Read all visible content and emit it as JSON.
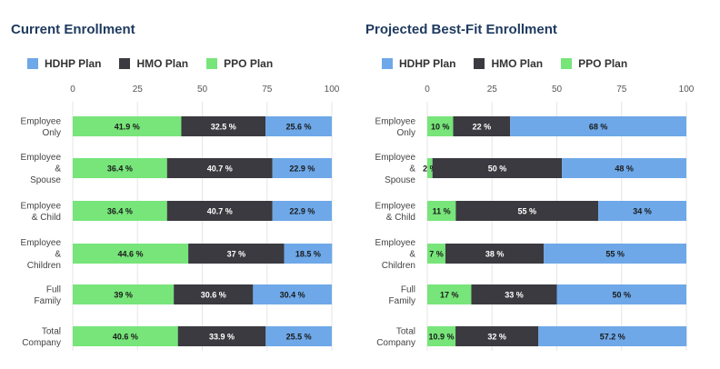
{
  "chart_data": [
    {
      "type": "bar",
      "orientation": "horizontal",
      "stacked": true,
      "title": "Current Enrollment",
      "legend_position": "top-left",
      "xlim": [
        0,
        100
      ],
      "ticks": [
        "0",
        "25",
        "50",
        "75",
        "100"
      ],
      "categories": [
        [
          "Employee",
          "Only"
        ],
        [
          "Employee",
          "&",
          "Spouse"
        ],
        [
          "Employee",
          "& Child"
        ],
        [
          "Employee",
          "&",
          "Children"
        ],
        [
          "Full",
          "Family"
        ],
        [
          "Total",
          "Company"
        ]
      ],
      "series": [
        {
          "name": "PPO Plan",
          "color": "#77e57a",
          "values": [
            41.9,
            36.4,
            36.4,
            44.6,
            39,
            40.6
          ],
          "labels": [
            "41.9 %",
            "36.4 %",
            "36.4 %",
            "44.6 %",
            "39 %",
            "40.6 %"
          ]
        },
        {
          "name": "HMO Plan",
          "color": "#3a3a40",
          "values": [
            32.5,
            40.7,
            40.7,
            37,
            30.6,
            33.9
          ],
          "labels": [
            "32.5 %",
            "40.7 %",
            "40.7 %",
            "37 %",
            "30.6 %",
            "33.9 %"
          ]
        },
        {
          "name": "HDHP Plan",
          "color": "#6ea8e8",
          "values": [
            25.6,
            22.9,
            22.9,
            18.5,
            30.4,
            25.5
          ],
          "labels": [
            "25.6 %",
            "22.9 %",
            "22.9 %",
            "18.5 %",
            "30.4 %",
            "25.5 %"
          ]
        }
      ],
      "legend_order": [
        "HDHP Plan",
        "HMO Plan",
        "PPO Plan"
      ]
    },
    {
      "type": "bar",
      "orientation": "horizontal",
      "stacked": true,
      "title": "Projected Best-Fit Enrollment",
      "legend_position": "top-left",
      "xlim": [
        0,
        100
      ],
      "ticks": [
        "0",
        "25",
        "50",
        "75",
        "100"
      ],
      "categories": [
        [
          "Employee",
          "Only"
        ],
        [
          "Employee",
          "&",
          "Spouse"
        ],
        [
          "Employee",
          "& Child"
        ],
        [
          "Employee",
          "&",
          "Children"
        ],
        [
          "Full",
          "Family"
        ],
        [
          "Total",
          "Company"
        ]
      ],
      "series": [
        {
          "name": "PPO Plan",
          "color": "#77e57a",
          "values": [
            10,
            2,
            11,
            7,
            17,
            10.9
          ],
          "labels": [
            "10 %",
            "2 %",
            "11 %",
            "7 %",
            "17 %",
            "10.9 %"
          ]
        },
        {
          "name": "HMO Plan",
          "color": "#3a3a40",
          "values": [
            22,
            50,
            55,
            38,
            33,
            32
          ],
          "labels": [
            "22 %",
            "50 %",
            "55 %",
            "38 %",
            "33 %",
            "32 %"
          ]
        },
        {
          "name": "HDHP Plan",
          "color": "#6ea8e8",
          "values": [
            68,
            48,
            34,
            55,
            50,
            57.2
          ],
          "labels": [
            "68 %",
            "48 %",
            "34 %",
            "55 %",
            "50 %",
            "57.2 %"
          ]
        }
      ],
      "legend_order": [
        "HDHP Plan",
        "HMO Plan",
        "PPO Plan"
      ]
    }
  ]
}
